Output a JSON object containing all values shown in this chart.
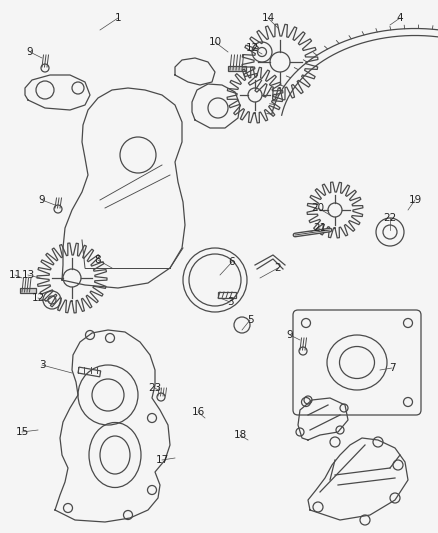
{
  "bg_color": "#f5f5f5",
  "line_color": "#4a4a4a",
  "label_color": "#222222",
  "figsize": [
    4.38,
    5.33
  ],
  "dpi": 100,
  "xlim": [
    0,
    438
  ],
  "ylim": [
    0,
    533
  ]
}
